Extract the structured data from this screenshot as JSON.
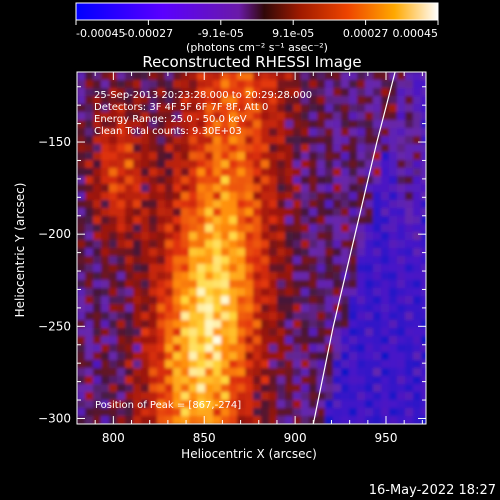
{
  "chart_data": {
    "type": "heatmap",
    "title": "Reconstructed RHESSI Image",
    "xlabel": "Heliocentric X (arcsec)",
    "ylabel": "Heliocentric Y (arcsec)",
    "xlim": [
      780,
      972
    ],
    "ylim": [
      -303,
      -112
    ],
    "xticks": [
      800,
      850,
      900,
      950
    ],
    "yticks": [
      -150,
      -200,
      -250,
      -300
    ],
    "colorbar": {
      "ticks": [
        "-0.00045",
        "-0.00027",
        "-9.1e-05",
        "9.1e-05",
        "0.00027",
        "0.00045"
      ],
      "units": "(photons cm⁻² s⁻¹ asec⁻²)",
      "min": -0.00045,
      "max": 0.00045
    },
    "annotations": [
      "25-Sep-2013 20:23:28.000 to 20:29:28.000",
      "Detectors: 3F 4F 5F 6F 7F 8F, Att 0",
      "Energy Range: 25.0 - 50.0 keV",
      "Clean     Total counts: 9.30E+03"
    ],
    "peak_label": "Position of Peak = [867,-274]",
    "peak": [
      867,
      -274
    ],
    "limb_curve": [
      [
        910,
        -303
      ],
      [
        921,
        -250
      ],
      [
        933,
        -200
      ],
      [
        945,
        -150
      ],
      [
        955,
        -112
      ]
    ],
    "footer_date": "16-May-2022 18:27"
  }
}
